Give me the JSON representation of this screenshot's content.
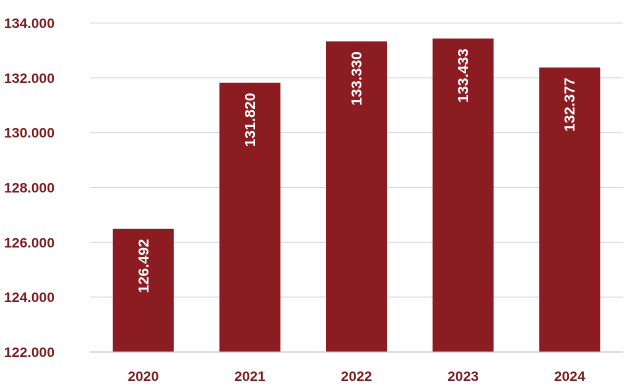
{
  "chart_data": {
    "type": "bar",
    "title": "",
    "xlabel": "",
    "ylabel": "",
    "categories": [
      "2020",
      "2021",
      "2022",
      "2023",
      "2024"
    ],
    "values": [
      126492,
      131820,
      133330,
      133433,
      132377
    ],
    "value_labels": [
      "126.492",
      "131.820",
      "133.330",
      "133.433",
      "132.377"
    ],
    "ylim": [
      122000,
      134000
    ],
    "yticks": [
      122000,
      124000,
      126000,
      128000,
      130000,
      132000,
      134000
    ],
    "ytick_labels": [
      "122.000",
      "124.000",
      "126.000",
      "128.000",
      "130.000",
      "132.000",
      "134.000"
    ],
    "grid": true,
    "legend": "none",
    "colors": {
      "bar": "#8b1c21",
      "axis_text": "#7b1c1e",
      "grid": "#d9d9d9",
      "axis_line": "#bfbfbf"
    }
  }
}
